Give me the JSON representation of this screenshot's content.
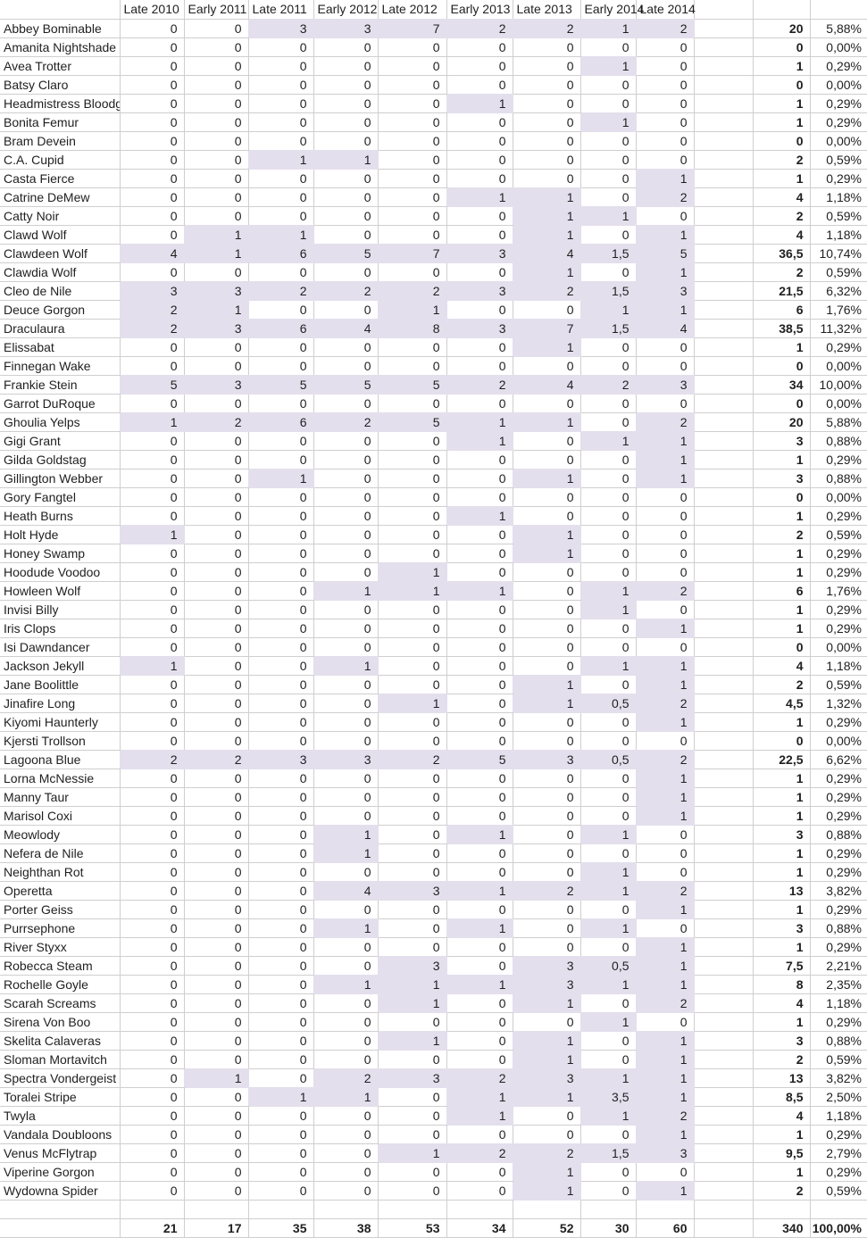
{
  "table": {
    "columns": [
      "Late 2010",
      "Early 2011",
      "Late 2011",
      "Early 2012",
      "Late 2012",
      "Early 2013",
      "Late 2013",
      "Early 2014",
      "Late 2014"
    ],
    "rows": [
      {
        "name": "Abbey Bominable",
        "values": [
          "0",
          "0",
          "3",
          "3",
          "7",
          "2",
          "2",
          "1",
          "2"
        ],
        "total": "20",
        "percent": "5,88%"
      },
      {
        "name": "Amanita Nightshade",
        "values": [
          "0",
          "0",
          "0",
          "0",
          "0",
          "0",
          "0",
          "0",
          "0"
        ],
        "total": "0",
        "percent": "0,00%"
      },
      {
        "name": "Avea Trotter",
        "values": [
          "0",
          "0",
          "0",
          "0",
          "0",
          "0",
          "0",
          "1",
          "0"
        ],
        "total": "1",
        "percent": "0,29%"
      },
      {
        "name": "Batsy Claro",
        "values": [
          "0",
          "0",
          "0",
          "0",
          "0",
          "0",
          "0",
          "0",
          "0"
        ],
        "total": "0",
        "percent": "0,00%"
      },
      {
        "name": "Headmistress Bloodg",
        "values": [
          "0",
          "0",
          "0",
          "0",
          "0",
          "1",
          "0",
          "0",
          "0"
        ],
        "total": "1",
        "percent": "0,29%"
      },
      {
        "name": "Bonita Femur",
        "values": [
          "0",
          "0",
          "0",
          "0",
          "0",
          "0",
          "0",
          "1",
          "0"
        ],
        "total": "1",
        "percent": "0,29%"
      },
      {
        "name": "Bram Devein",
        "values": [
          "0",
          "0",
          "0",
          "0",
          "0",
          "0",
          "0",
          "0",
          "0"
        ],
        "total": "0",
        "percent": "0,00%"
      },
      {
        "name": "C.A. Cupid",
        "values": [
          "0",
          "0",
          "1",
          "1",
          "0",
          "0",
          "0",
          "0",
          "0"
        ],
        "total": "2",
        "percent": "0,59%"
      },
      {
        "name": "Casta Fierce",
        "values": [
          "0",
          "0",
          "0",
          "0",
          "0",
          "0",
          "0",
          "0",
          "1"
        ],
        "total": "1",
        "percent": "0,29%"
      },
      {
        "name": "Catrine DeMew",
        "values": [
          "0",
          "0",
          "0",
          "0",
          "0",
          "1",
          "1",
          "0",
          "2"
        ],
        "total": "4",
        "percent": "1,18%"
      },
      {
        "name": "Catty Noir",
        "values": [
          "0",
          "0",
          "0",
          "0",
          "0",
          "0",
          "1",
          "1",
          "0"
        ],
        "total": "2",
        "percent": "0,59%"
      },
      {
        "name": "Clawd Wolf",
        "values": [
          "0",
          "1",
          "1",
          "0",
          "0",
          "0",
          "1",
          "0",
          "1"
        ],
        "total": "4",
        "percent": "1,18%"
      },
      {
        "name": "Clawdeen Wolf",
        "values": [
          "4",
          "1",
          "6",
          "5",
          "7",
          "3",
          "4",
          "1,5",
          "5"
        ],
        "total": "36,5",
        "percent": "10,74%"
      },
      {
        "name": "Clawdia Wolf",
        "values": [
          "0",
          "0",
          "0",
          "0",
          "0",
          "0",
          "1",
          "0",
          "1"
        ],
        "total": "2",
        "percent": "0,59%"
      },
      {
        "name": "Cleo de Nile",
        "values": [
          "3",
          "3",
          "2",
          "2",
          "2",
          "3",
          "2",
          "1,5",
          "3"
        ],
        "total": "21,5",
        "percent": "6,32%"
      },
      {
        "name": "Deuce Gorgon",
        "values": [
          "2",
          "1",
          "0",
          "0",
          "1",
          "0",
          "0",
          "1",
          "1"
        ],
        "total": "6",
        "percent": "1,76%"
      },
      {
        "name": "Draculaura",
        "values": [
          "2",
          "3",
          "6",
          "4",
          "8",
          "3",
          "7",
          "1,5",
          "4"
        ],
        "total": "38,5",
        "percent": "11,32%"
      },
      {
        "name": "Elissabat",
        "values": [
          "0",
          "0",
          "0",
          "0",
          "0",
          "0",
          "1",
          "0",
          "0"
        ],
        "total": "1",
        "percent": "0,29%"
      },
      {
        "name": "Finnegan Wake",
        "values": [
          "0",
          "0",
          "0",
          "0",
          "0",
          "0",
          "0",
          "0",
          "0"
        ],
        "total": "0",
        "percent": "0,00%"
      },
      {
        "name": "Frankie Stein",
        "values": [
          "5",
          "3",
          "5",
          "5",
          "5",
          "2",
          "4",
          "2",
          "3"
        ],
        "total": "34",
        "percent": "10,00%"
      },
      {
        "name": "Garrot DuRoque",
        "values": [
          "0",
          "0",
          "0",
          "0",
          "0",
          "0",
          "0",
          "0",
          "0"
        ],
        "total": "0",
        "percent": "0,00%"
      },
      {
        "name": "Ghoulia Yelps",
        "values": [
          "1",
          "2",
          "6",
          "2",
          "5",
          "1",
          "1",
          "0",
          "2"
        ],
        "total": "20",
        "percent": "5,88%"
      },
      {
        "name": "Gigi Grant",
        "values": [
          "0",
          "0",
          "0",
          "0",
          "0",
          "1",
          "0",
          "1",
          "1"
        ],
        "total": "3",
        "percent": "0,88%"
      },
      {
        "name": "Gilda Goldstag",
        "values": [
          "0",
          "0",
          "0",
          "0",
          "0",
          "0",
          "0",
          "0",
          "1"
        ],
        "total": "1",
        "percent": "0,29%"
      },
      {
        "name": "Gillington Webber",
        "values": [
          "0",
          "0",
          "1",
          "0",
          "0",
          "0",
          "1",
          "0",
          "1"
        ],
        "total": "3",
        "percent": "0,88%"
      },
      {
        "name": "Gory Fangtel",
        "values": [
          "0",
          "0",
          "0",
          "0",
          "0",
          "0",
          "0",
          "0",
          "0"
        ],
        "total": "0",
        "percent": "0,00%"
      },
      {
        "name": "Heath Burns",
        "values": [
          "0",
          "0",
          "0",
          "0",
          "0",
          "1",
          "0",
          "0",
          "0"
        ],
        "total": "1",
        "percent": "0,29%"
      },
      {
        "name": "Holt Hyde",
        "values": [
          "1",
          "0",
          "0",
          "0",
          "0",
          "0",
          "1",
          "0",
          "0"
        ],
        "total": "2",
        "percent": "0,59%"
      },
      {
        "name": "Honey Swamp",
        "values": [
          "0",
          "0",
          "0",
          "0",
          "0",
          "0",
          "1",
          "0",
          "0"
        ],
        "total": "1",
        "percent": "0,29%"
      },
      {
        "name": "Hoodude Voodoo",
        "values": [
          "0",
          "0",
          "0",
          "0",
          "1",
          "0",
          "0",
          "0",
          "0"
        ],
        "total": "1",
        "percent": "0,29%"
      },
      {
        "name": "Howleen Wolf",
        "values": [
          "0",
          "0",
          "0",
          "1",
          "1",
          "1",
          "0",
          "1",
          "2"
        ],
        "total": "6",
        "percent": "1,76%"
      },
      {
        "name": "Invisi Billy",
        "values": [
          "0",
          "0",
          "0",
          "0",
          "0",
          "0",
          "0",
          "1",
          "0"
        ],
        "total": "1",
        "percent": "0,29%"
      },
      {
        "name": "Iris Clops",
        "values": [
          "0",
          "0",
          "0",
          "0",
          "0",
          "0",
          "0",
          "0",
          "1"
        ],
        "total": "1",
        "percent": "0,29%"
      },
      {
        "name": "Isi Dawndancer",
        "values": [
          "0",
          "0",
          "0",
          "0",
          "0",
          "0",
          "0",
          "0",
          "0"
        ],
        "total": "0",
        "percent": "0,00%"
      },
      {
        "name": "Jackson Jekyll",
        "values": [
          "1",
          "0",
          "0",
          "1",
          "0",
          "0",
          "0",
          "1",
          "1"
        ],
        "total": "4",
        "percent": "1,18%"
      },
      {
        "name": "Jane Boolittle",
        "values": [
          "0",
          "0",
          "0",
          "0",
          "0",
          "0",
          "1",
          "0",
          "1"
        ],
        "total": "2",
        "percent": "0,59%"
      },
      {
        "name": "Jinafire Long",
        "values": [
          "0",
          "0",
          "0",
          "0",
          "1",
          "0",
          "1",
          "0,5",
          "2"
        ],
        "total": "4,5",
        "percent": "1,32%"
      },
      {
        "name": "Kiyomi Haunterly",
        "values": [
          "0",
          "0",
          "0",
          "0",
          "0",
          "0",
          "0",
          "0",
          "1"
        ],
        "total": "1",
        "percent": "0,29%"
      },
      {
        "name": "Kjersti Trollson",
        "values": [
          "0",
          "0",
          "0",
          "0",
          "0",
          "0",
          "0",
          "0",
          "0"
        ],
        "total": "0",
        "percent": "0,00%"
      },
      {
        "name": "Lagoona Blue",
        "values": [
          "2",
          "2",
          "3",
          "3",
          "2",
          "5",
          "3",
          "0,5",
          "2"
        ],
        "total": "22,5",
        "percent": "6,62%"
      },
      {
        "name": "Lorna McNessie",
        "values": [
          "0",
          "0",
          "0",
          "0",
          "0",
          "0",
          "0",
          "0",
          "1"
        ],
        "total": "1",
        "percent": "0,29%"
      },
      {
        "name": "Manny Taur",
        "values": [
          "0",
          "0",
          "0",
          "0",
          "0",
          "0",
          "0",
          "0",
          "1"
        ],
        "total": "1",
        "percent": "0,29%"
      },
      {
        "name": "Marisol Coxi",
        "values": [
          "0",
          "0",
          "0",
          "0",
          "0",
          "0",
          "0",
          "0",
          "1"
        ],
        "total": "1",
        "percent": "0,29%"
      },
      {
        "name": "Meowlody",
        "values": [
          "0",
          "0",
          "0",
          "1",
          "0",
          "1",
          "0",
          "1",
          "0"
        ],
        "total": "3",
        "percent": "0,88%"
      },
      {
        "name": "Nefera de Nile",
        "values": [
          "0",
          "0",
          "0",
          "1",
          "0",
          "0",
          "0",
          "0",
          "0"
        ],
        "total": "1",
        "percent": "0,29%"
      },
      {
        "name": "Neighthan Rot",
        "values": [
          "0",
          "0",
          "0",
          "0",
          "0",
          "0",
          "0",
          "1",
          "0"
        ],
        "total": "1",
        "percent": "0,29%"
      },
      {
        "name": "Operetta",
        "values": [
          "0",
          "0",
          "0",
          "4",
          "3",
          "1",
          "2",
          "1",
          "2"
        ],
        "total": "13",
        "percent": "3,82%"
      },
      {
        "name": "Porter Geiss",
        "values": [
          "0",
          "0",
          "0",
          "0",
          "0",
          "0",
          "0",
          "0",
          "1"
        ],
        "total": "1",
        "percent": "0,29%"
      },
      {
        "name": "Purrsephone",
        "values": [
          "0",
          "0",
          "0",
          "1",
          "0",
          "1",
          "0",
          "1",
          "0"
        ],
        "total": "3",
        "percent": "0,88%"
      },
      {
        "name": "River Styxx",
        "values": [
          "0",
          "0",
          "0",
          "0",
          "0",
          "0",
          "0",
          "0",
          "1"
        ],
        "total": "1",
        "percent": "0,29%"
      },
      {
        "name": "Robecca Steam",
        "values": [
          "0",
          "0",
          "0",
          "0",
          "3",
          "0",
          "3",
          "0,5",
          "1"
        ],
        "total": "7,5",
        "percent": "2,21%"
      },
      {
        "name": "Rochelle Goyle",
        "values": [
          "0",
          "0",
          "0",
          "1",
          "1",
          "1",
          "3",
          "1",
          "1"
        ],
        "total": "8",
        "percent": "2,35%"
      },
      {
        "name": "Scarah Screams",
        "values": [
          "0",
          "0",
          "0",
          "0",
          "1",
          "0",
          "1",
          "0",
          "2"
        ],
        "total": "4",
        "percent": "1,18%"
      },
      {
        "name": "Sirena Von Boo",
        "values": [
          "0",
          "0",
          "0",
          "0",
          "0",
          "0",
          "0",
          "1",
          "0"
        ],
        "total": "1",
        "percent": "0,29%"
      },
      {
        "name": "Skelita Calaveras",
        "values": [
          "0",
          "0",
          "0",
          "0",
          "1",
          "0",
          "1",
          "0",
          "1"
        ],
        "total": "3",
        "percent": "0,88%"
      },
      {
        "name": "Sloman Mortavitch",
        "values": [
          "0",
          "0",
          "0",
          "0",
          "0",
          "0",
          "1",
          "0",
          "1"
        ],
        "total": "2",
        "percent": "0,59%"
      },
      {
        "name": "Spectra Vondergeist",
        "values": [
          "0",
          "1",
          "0",
          "2",
          "3",
          "2",
          "3",
          "1",
          "1"
        ],
        "total": "13",
        "percent": "3,82%"
      },
      {
        "name": "Toralei Stripe",
        "values": [
          "0",
          "0",
          "1",
          "1",
          "0",
          "1",
          "1",
          "3,5",
          "1"
        ],
        "total": "8,5",
        "percent": "2,50%"
      },
      {
        "name": "Twyla",
        "values": [
          "0",
          "0",
          "0",
          "0",
          "0",
          "1",
          "0",
          "1",
          "2"
        ],
        "total": "4",
        "percent": "1,18%"
      },
      {
        "name": "Vandala Doubloons",
        "values": [
          "0",
          "0",
          "0",
          "0",
          "0",
          "0",
          "0",
          "0",
          "1"
        ],
        "total": "1",
        "percent": "0,29%"
      },
      {
        "name": "Venus McFlytrap",
        "values": [
          "0",
          "0",
          "0",
          "0",
          "1",
          "2",
          "2",
          "1,5",
          "3"
        ],
        "total": "9,5",
        "percent": "2,79%"
      },
      {
        "name": "Viperine Gorgon",
        "values": [
          "0",
          "0",
          "0",
          "0",
          "0",
          "0",
          "1",
          "0",
          "0"
        ],
        "total": "1",
        "percent": "0,29%"
      },
      {
        "name": "Wydowna Spider",
        "values": [
          "0",
          "0",
          "0",
          "0",
          "0",
          "0",
          "1",
          "0",
          "1"
        ],
        "total": "2",
        "percent": "0,59%"
      }
    ],
    "totals_row": {
      "values": [
        "21",
        "17",
        "35",
        "38",
        "53",
        "34",
        "52",
        "30",
        "60"
      ],
      "total": "340",
      "percent": "100,00%"
    },
    "colors": {
      "highlight": "#e4dfec",
      "gridline": "#d0cece"
    }
  }
}
